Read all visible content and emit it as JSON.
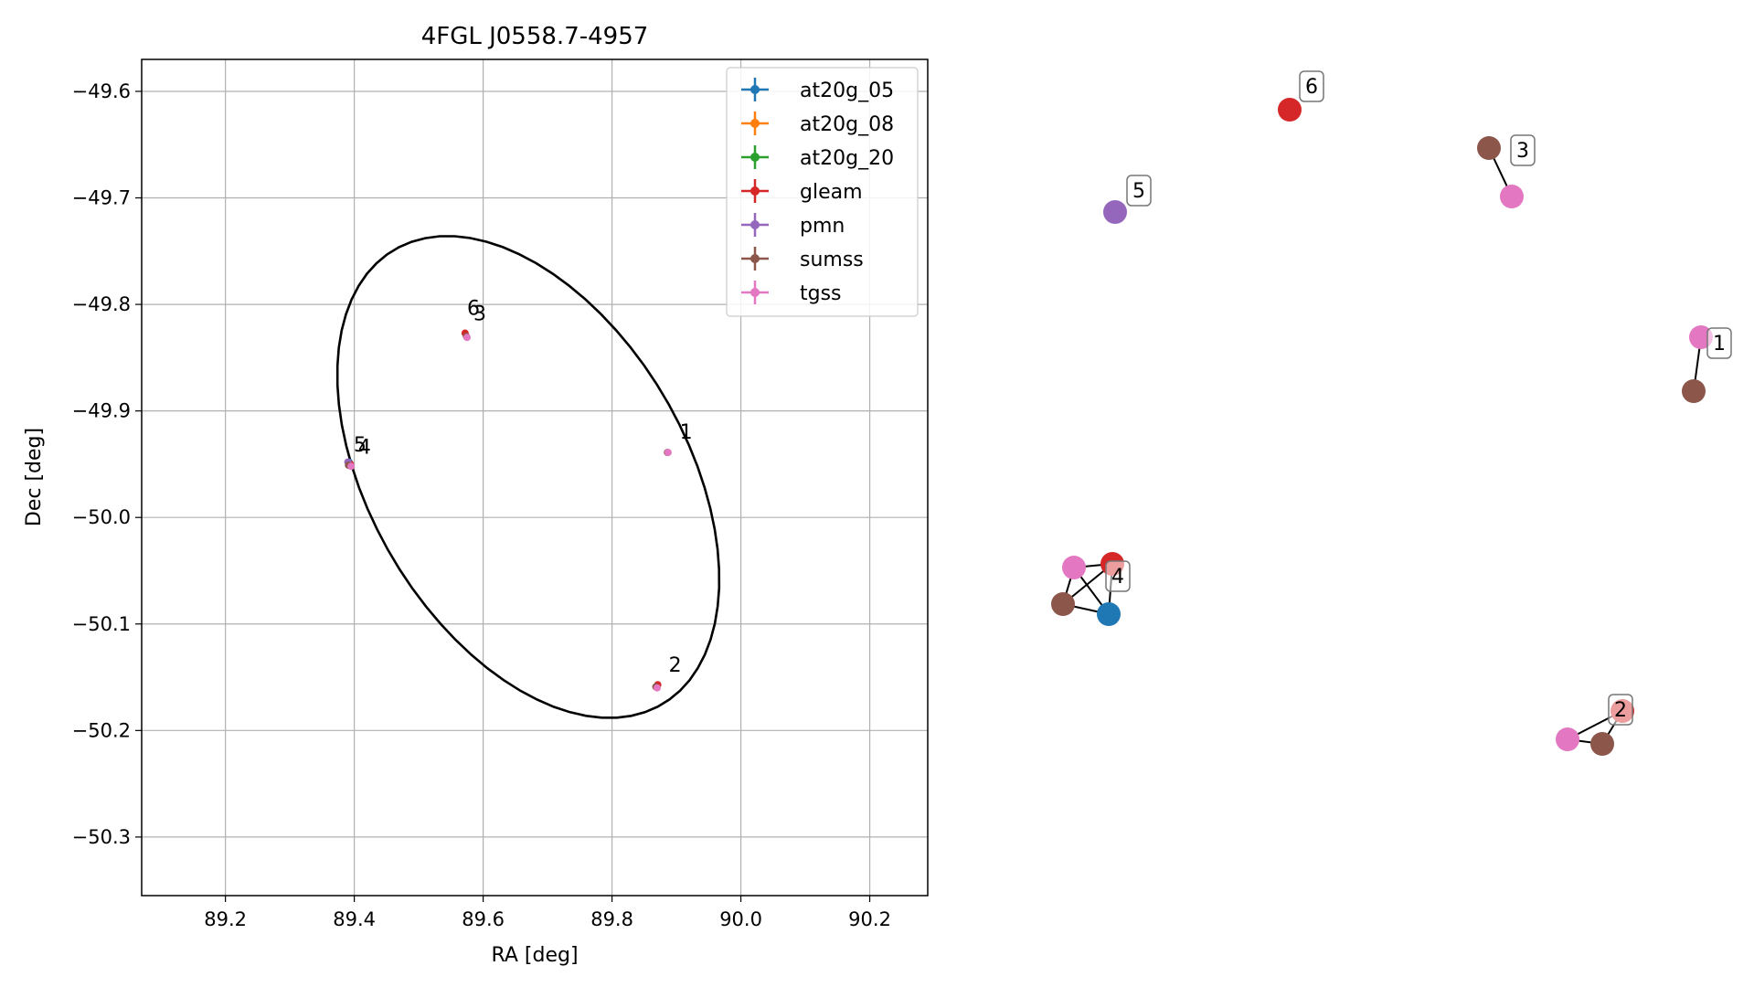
{
  "chart_data": [
    {
      "type": "scatter",
      "title": "4FGL J0558.7-4957",
      "xlabel": "RA [deg]",
      "ylabel": "Dec [deg]",
      "xlim": [
        89.07,
        90.29
      ],
      "ylim": [
        -50.355,
        -49.57
      ],
      "xticks": [
        89.2,
        89.4,
        89.6,
        89.8,
        90.0,
        90.2
      ],
      "xtick_labels": [
        "89.2",
        "89.4",
        "89.6",
        "89.8",
        "90.0",
        "90.2"
      ],
      "yticks": [
        -49.6,
        -49.7,
        -49.8,
        -49.9,
        -50.0,
        -50.1,
        -50.2,
        -50.3
      ],
      "ytick_labels": [
        "−49.6",
        "−49.7",
        "−49.8",
        "−49.9",
        "−50.0",
        "−50.1",
        "−50.2",
        "−50.3"
      ],
      "grid": true,
      "legend_position": "top-right",
      "ellipse": {
        "ra": 89.67,
        "dec": -49.962,
        "semi_major_deg": 0.252,
        "semi_minor_deg": 0.155,
        "angle_deg": 124
      },
      "series": [
        {
          "name": "at20g_05",
          "color": "#1f77b4",
          "points": [
            {
              "ra": 89.392,
              "dec": -49.948
            }
          ]
        },
        {
          "name": "at20g_08",
          "color": "#ff7f0e",
          "points": []
        },
        {
          "name": "at20g_20",
          "color": "#2ca02c",
          "points": []
        },
        {
          "name": "gleam",
          "color": "#d62728",
          "points": [
            {
              "ra": 89.572,
              "dec": -49.827
            },
            {
              "ra": 89.394,
              "dec": -49.95
            },
            {
              "ra": 89.871,
              "dec": -50.157
            }
          ]
        },
        {
          "name": "pmn",
          "color": "#9467bd",
          "points": [
            {
              "ra": 89.39,
              "dec": -49.948
            }
          ]
        },
        {
          "name": "sumss",
          "color": "#8c564b",
          "points": [
            {
              "ra": 89.574,
              "dec": -49.83
            },
            {
              "ra": 89.391,
              "dec": -49.951
            },
            {
              "ra": 89.868,
              "dec": -50.159
            },
            {
              "ra": 89.886,
              "dec": -49.939
            }
          ]
        },
        {
          "name": "tgss",
          "color": "#e377c2",
          "points": [
            {
              "ra": 89.575,
              "dec": -49.831
            },
            {
              "ra": 89.395,
              "dec": -49.952
            },
            {
              "ra": 89.87,
              "dec": -50.16
            },
            {
              "ra": 89.887,
              "dec": -49.939
            }
          ]
        }
      ],
      "annotations": [
        {
          "text": "6",
          "ra": 89.575,
          "dec": -49.81
        },
        {
          "text": "3",
          "ra": 89.585,
          "dec": -49.815
        },
        {
          "text": "5",
          "ra": 89.399,
          "dec": -49.938
        },
        {
          "text": "4",
          "ra": 89.406,
          "dec": -49.94
        },
        {
          "text": "1",
          "ra": 89.905,
          "dec": -49.926
        },
        {
          "text": "2",
          "ra": 89.888,
          "dec": -50.145
        }
      ]
    },
    {
      "type": "network",
      "nodes": [
        {
          "id": "n6_gleam",
          "color": "#d62728",
          "label": "6"
        },
        {
          "id": "n3_sumss",
          "color": "#8c564b",
          "label": "3"
        },
        {
          "id": "n3_tgss",
          "color": "#e377c2",
          "label": ""
        },
        {
          "id": "n5_pmn",
          "color": "#9467bd",
          "label": "5"
        },
        {
          "id": "n1_tgss",
          "color": "#e377c2",
          "label": "1"
        },
        {
          "id": "n1_sumss",
          "color": "#8c564b",
          "label": ""
        },
        {
          "id": "n4_tgss",
          "color": "#e377c2",
          "label": ""
        },
        {
          "id": "n4_gleam",
          "color": "#d62728",
          "label": ""
        },
        {
          "id": "n4_sumss",
          "color": "#8c564b",
          "label": ""
        },
        {
          "id": "n4_at20g",
          "color": "#1f77b4",
          "label": "4"
        },
        {
          "id": "n2_gleam",
          "color": "#d62728",
          "label": "2"
        },
        {
          "id": "n2_tgss",
          "color": "#e377c2",
          "label": ""
        },
        {
          "id": "n2_sumss",
          "color": "#8c564b",
          "label": ""
        }
      ],
      "edges": [
        [
          "n3_sumss",
          "n3_tgss"
        ],
        [
          "n1_tgss",
          "n1_sumss"
        ],
        [
          "n4_tgss",
          "n4_gleam"
        ],
        [
          "n4_tgss",
          "n4_sumss"
        ],
        [
          "n4_tgss",
          "n4_at20g"
        ],
        [
          "n4_gleam",
          "n4_sumss"
        ],
        [
          "n4_gleam",
          "n4_at20g"
        ],
        [
          "n4_sumss",
          "n4_at20g"
        ],
        [
          "n2_gleam",
          "n2_tgss"
        ],
        [
          "n2_gleam",
          "n2_sumss"
        ],
        [
          "n2_tgss",
          "n2_sumss"
        ]
      ]
    }
  ]
}
